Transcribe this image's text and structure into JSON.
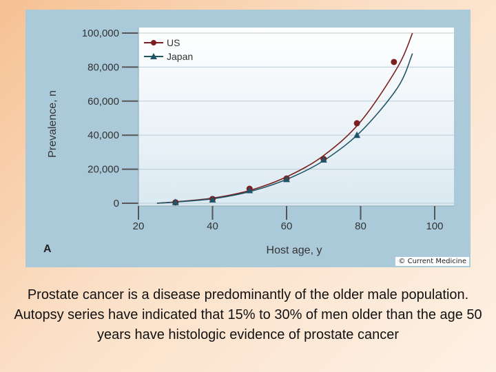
{
  "chart_data": {
    "type": "scatter",
    "panel_label": "A",
    "xlabel": "Host age, y",
    "ylabel": "Prevalence, n",
    "xlim": [
      20,
      100
    ],
    "ylim": [
      0,
      100000
    ],
    "x_ticks": [
      "20",
      "40",
      "60",
      "80",
      "100"
    ],
    "y_ticks": [
      "0",
      "20,000",
      "40,000",
      "60,000",
      "80,000",
      "100,000"
    ],
    "legend_position": "top-left",
    "series": [
      {
        "name": "US",
        "color": "#7b1e1e",
        "marker": "circle",
        "points": [
          [
            30,
            500
          ],
          [
            40,
            2500
          ],
          [
            50,
            8500
          ],
          [
            60,
            14500
          ],
          [
            70,
            26000
          ],
          [
            79,
            47000
          ],
          [
            89,
            83000
          ]
        ],
        "fit_curve": [
          [
            25,
            0
          ],
          [
            30,
            800
          ],
          [
            40,
            3000
          ],
          [
            50,
            7500
          ],
          [
            60,
            15500
          ],
          [
            70,
            28000
          ],
          [
            80,
            48000
          ],
          [
            90,
            80000
          ],
          [
            94,
            100000
          ]
        ]
      },
      {
        "name": "Japan",
        "color": "#1f5566",
        "marker": "triangle",
        "points": [
          [
            30,
            500
          ],
          [
            40,
            2000
          ],
          [
            50,
            7500
          ],
          [
            60,
            14000
          ],
          [
            70,
            25500
          ],
          [
            79,
            40000
          ]
        ],
        "fit_curve": [
          [
            25,
            0
          ],
          [
            30,
            700
          ],
          [
            40,
            2600
          ],
          [
            50,
            6800
          ],
          [
            60,
            14000
          ],
          [
            70,
            25000
          ],
          [
            80,
            42000
          ],
          [
            90,
            68000
          ],
          [
            94,
            88000
          ]
        ]
      }
    ]
  },
  "credit": "© Current Medicine",
  "caption": "Prostate cancer is a disease predominantly of the older male population. Autopsy series have indicated that 15% to 30% of men older than the age 50 years have histologic evidence of prostate cancer"
}
